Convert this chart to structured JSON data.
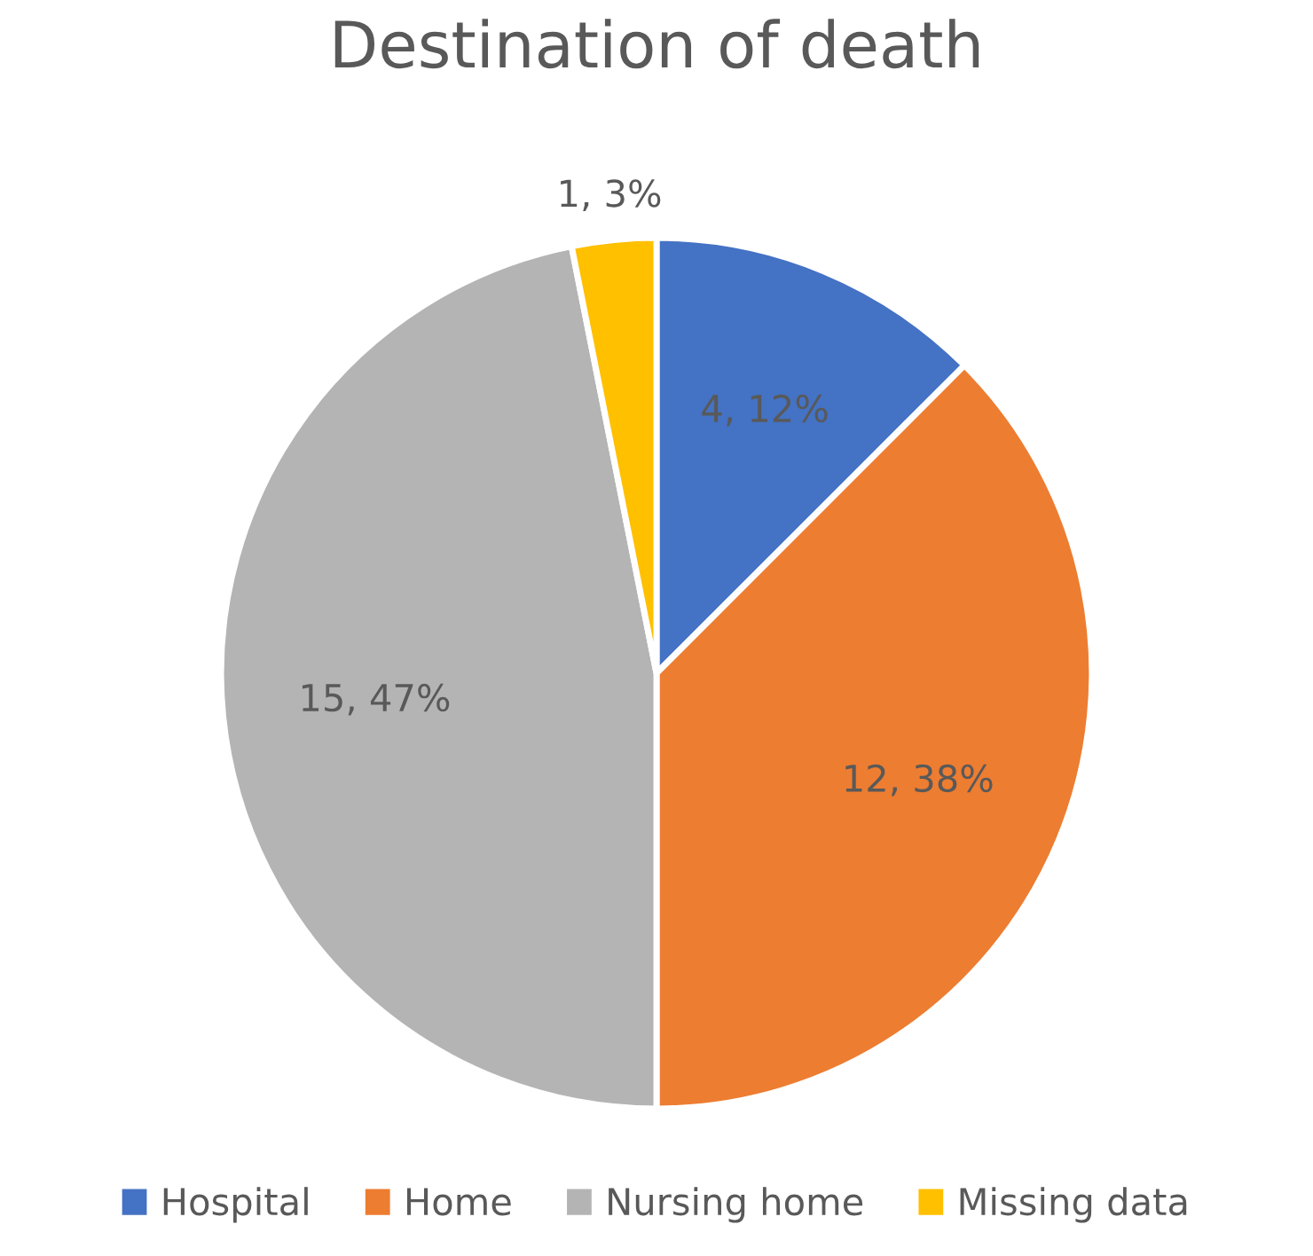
{
  "chart_data": {
    "type": "pie",
    "title": "Destination of death",
    "categories": [
      "Hospital",
      "Home",
      "Nursing home",
      "Missing data"
    ],
    "values": [
      4,
      12,
      15,
      1
    ],
    "value_labels": [
      "4, 12%",
      "12, 38%",
      "15, 47%",
      "1, 3%"
    ],
    "colors": [
      "#4472c4",
      "#ed7d31",
      "#b4b4b4",
      "#ffc000"
    ],
    "legend": "bottom"
  }
}
